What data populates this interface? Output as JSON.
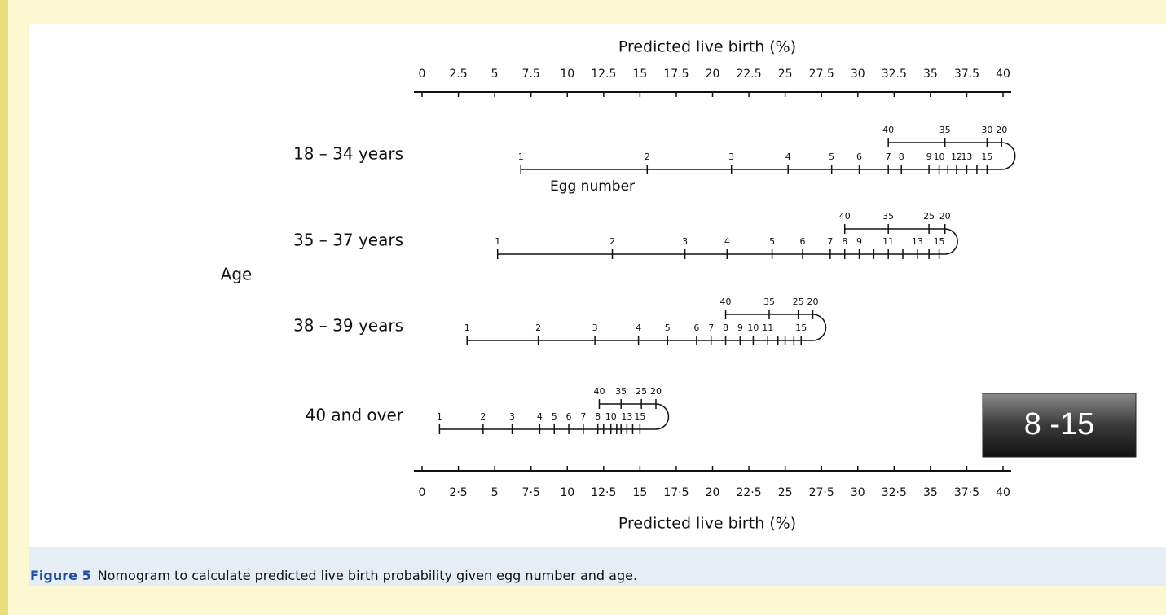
{
  "chart_data": {
    "type": "nomogram",
    "xlim": [
      0,
      40
    ],
    "top_axis": {
      "title": "Predicted live birth (%)",
      "ticks": [
        0,
        2.5,
        5,
        7.5,
        10,
        12.5,
        15,
        17.5,
        20,
        22.5,
        25,
        27.5,
        30,
        32.5,
        35,
        37.5,
        40
      ]
    },
    "bottom_axis": {
      "title": "Predicted live birth (%)",
      "ticks": [
        0,
        {
          "value": 2.5,
          "label": "2·5"
        },
        5,
        {
          "value": 7.5,
          "label": "7·5"
        },
        10,
        {
          "value": 12.5,
          "label": "12·5"
        },
        15,
        {
          "value": 17.5,
          "label": "17·5"
        },
        20,
        {
          "value": 22.5,
          "label": "22·5"
        },
        25,
        {
          "value": 27.5,
          "label": "27·5"
        },
        30,
        {
          "value": 32.5,
          "label": "32·5"
        },
        35,
        {
          "value": 37.5,
          "label": "37·5"
        },
        40
      ]
    },
    "group_label": "Age",
    "scale_label": "Egg number",
    "rows": [
      {
        "name": "18 – 34 years",
        "egg_labels": [
          1,
          2,
          3,
          4,
          5,
          6,
          7,
          8,
          9,
          10,
          null,
          12,
          13,
          null,
          15
        ],
        "egg_values": [
          6.8,
          15.5,
          21.3,
          25.2,
          28.2,
          30.1,
          32.1,
          33.0,
          34.9,
          35.6,
          36.2,
          36.8,
          37.5,
          38.2,
          38.9
        ],
        "upper_labels": [
          40,
          35,
          30,
          20
        ],
        "upper_values": [
          32.1,
          36.0,
          38.9,
          39.9
        ]
      },
      {
        "name": "35 – 37 years",
        "egg_labels": [
          1,
          2,
          3,
          4,
          5,
          6,
          7,
          8,
          9,
          null,
          11,
          null,
          13,
          null,
          15
        ],
        "egg_values": [
          5.2,
          13.1,
          18.1,
          21.0,
          24.1,
          26.2,
          28.1,
          29.1,
          30.1,
          31.1,
          32.1,
          33.1,
          34.1,
          34.9,
          35.6
        ],
        "upper_labels": [
          40,
          35,
          25,
          20
        ],
        "upper_values": [
          29.1,
          32.1,
          34.9,
          36.0
        ]
      },
      {
        "name": "38 – 39 years",
        "egg_labels": [
          1,
          2,
          3,
          4,
          5,
          6,
          7,
          8,
          9,
          10,
          11,
          null,
          null,
          null,
          15
        ],
        "egg_values": [
          3.1,
          8.0,
          11.9,
          14.9,
          16.9,
          18.9,
          19.9,
          20.9,
          21.9,
          22.8,
          23.8,
          24.5,
          25.0,
          25.6,
          26.1
        ],
        "upper_labels": [
          40,
          35,
          25,
          20
        ],
        "upper_values": [
          20.9,
          23.9,
          25.9,
          26.9
        ]
      },
      {
        "name": "40 and over",
        "egg_labels": [
          1,
          2,
          3,
          4,
          5,
          6,
          7,
          8,
          null,
          10,
          null,
          null,
          13,
          null,
          15
        ],
        "egg_values": [
          1.2,
          4.2,
          6.2,
          8.1,
          9.1,
          10.1,
          11.1,
          12.1,
          12.5,
          13.0,
          13.4,
          13.7,
          14.1,
          14.5,
          15.0
        ],
        "upper_labels": [
          40,
          35,
          25,
          20
        ],
        "upper_values": [
          12.2,
          13.7,
          15.1,
          16.1
        ]
      }
    ],
    "callout": "8 -15",
    "caption": {
      "label": "Figure 5",
      "text": "Nomogram to calculate predicted live birth probability given egg number and age."
    }
  }
}
